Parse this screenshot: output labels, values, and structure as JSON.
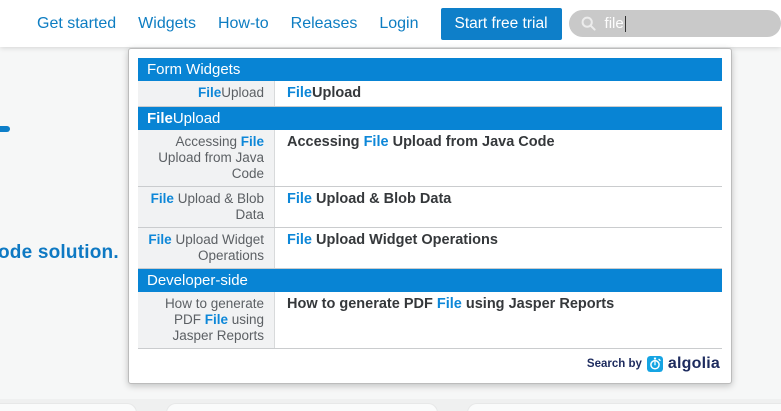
{
  "nav": {
    "links": [
      {
        "label": "Get started"
      },
      {
        "label": "Widgets"
      },
      {
        "label": "How-to"
      },
      {
        "label": "Releases"
      },
      {
        "label": "Login"
      }
    ],
    "cta_label": "Start free trial"
  },
  "search": {
    "value": "file"
  },
  "hero": {
    "partial_text": "ode solution."
  },
  "dropdown": {
    "sections": [
      {
        "header": [
          {
            "t": "Form Widgets"
          }
        ],
        "rows": [
          {
            "query": [
              {
                "t": "File",
                "hl": true
              },
              {
                "t": "Upload"
              }
            ],
            "result": [
              {
                "t": "File",
                "hl": true
              },
              {
                "t": "Upload"
              }
            ]
          }
        ]
      },
      {
        "header": [
          {
            "t": "File",
            "b": true
          },
          {
            "t": "Upload"
          }
        ],
        "rows": [
          {
            "query": [
              {
                "t": "Accessing "
              },
              {
                "t": "File",
                "hl": true
              },
              {
                "t": " Upload from Java Code"
              }
            ],
            "result": [
              {
                "t": "Accessing "
              },
              {
                "t": "File",
                "hl": true
              },
              {
                "t": " Upload from Java Code"
              }
            ]
          },
          {
            "query": [
              {
                "t": "File",
                "hl": true
              },
              {
                "t": " Upload & Blob Data"
              }
            ],
            "result": [
              {
                "t": "File",
                "hl": true
              },
              {
                "t": " Upload & Blob Data"
              }
            ]
          },
          {
            "query": [
              {
                "t": "File",
                "hl": true
              },
              {
                "t": " Upload Widget Operations"
              }
            ],
            "result": [
              {
                "t": "File",
                "hl": true
              },
              {
                "t": " Upload Widget Operations"
              }
            ]
          }
        ]
      },
      {
        "header": [
          {
            "t": "Developer-side"
          }
        ],
        "rows": [
          {
            "query": [
              {
                "t": "How to generate PDF "
              },
              {
                "t": "File",
                "hl": true
              },
              {
                "t": " using Jasper Reports"
              }
            ],
            "result": [
              {
                "t": "How to generate PDF "
              },
              {
                "t": "File",
                "hl": true
              },
              {
                "t": " using Jasper Reports"
              }
            ]
          }
        ]
      }
    ],
    "footer": {
      "search_by": "Search by",
      "brand": "algolia"
    }
  },
  "icons": {
    "search": "magnifier-icon",
    "algolia": "algolia-logo-icon"
  },
  "colors": {
    "nav_link_blue": "#0d7dc2",
    "cta_blue": "#0e7fc9",
    "section_header_blue": "#0884d4",
    "highlight_blue": "#0d87d8",
    "algolia_navy": "#1d2b5e",
    "algolia_logo_blue": "#15a4e3",
    "search_pill_gray": "#c9c9c9"
  }
}
